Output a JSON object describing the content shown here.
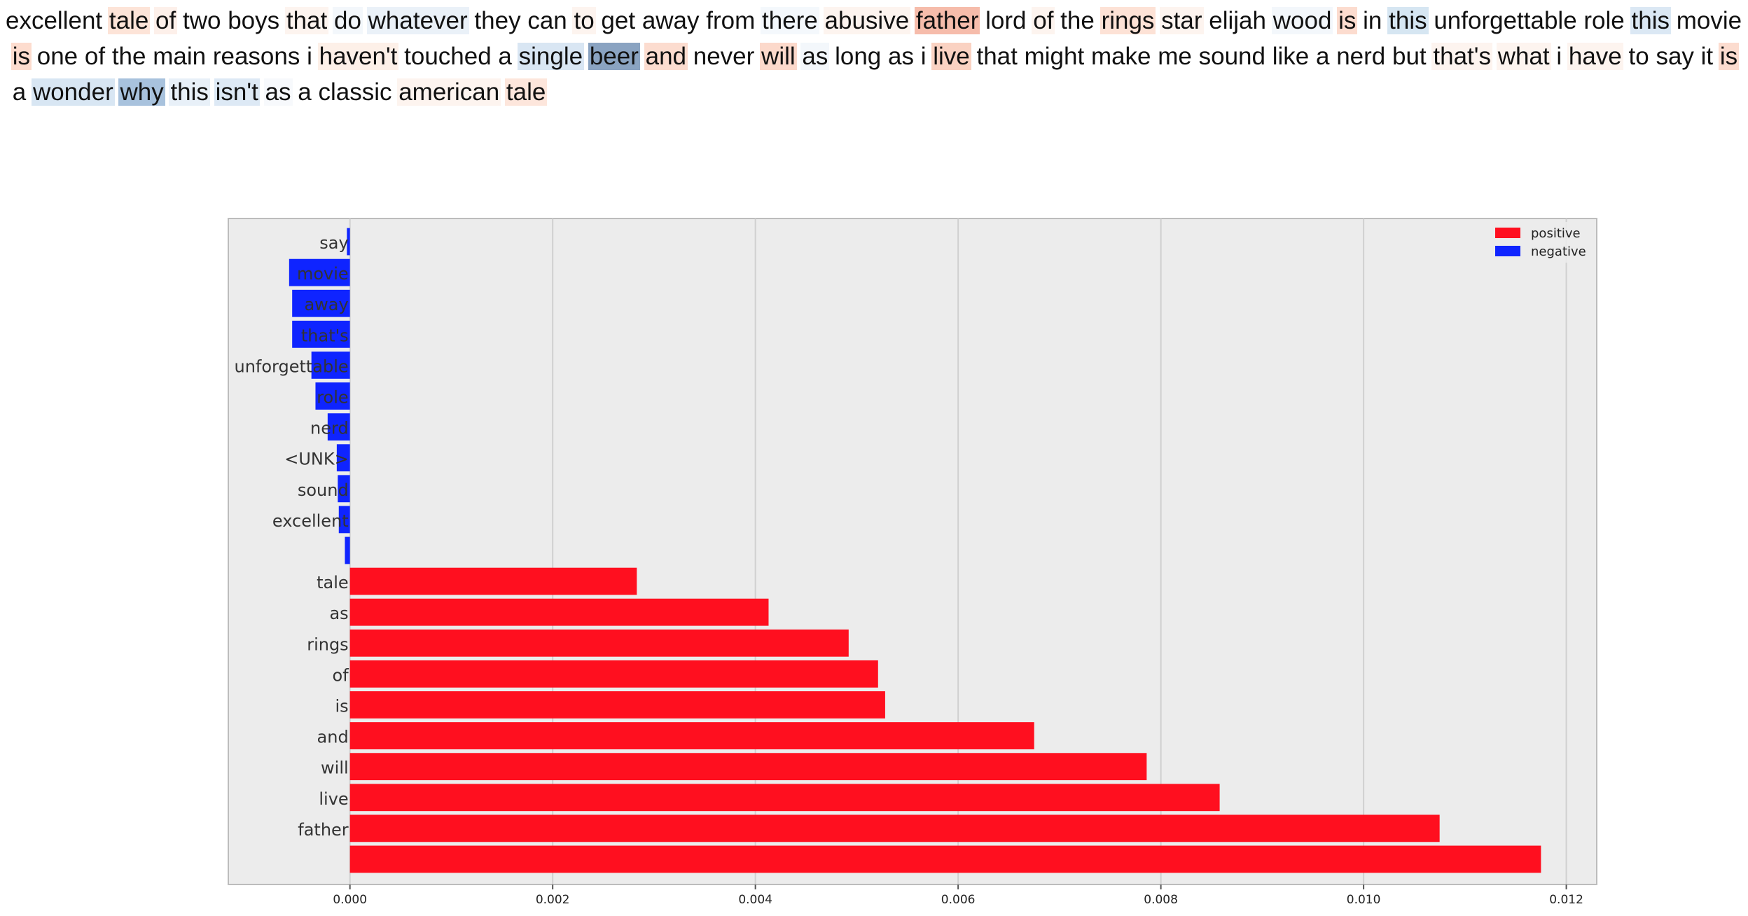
{
  "review": {
    "tokens": [
      {
        "w": "excellent",
        "c": ""
      },
      {
        "w": "tale",
        "c": "#fde4d8"
      },
      {
        "w": "of",
        "c": "#fdf0ea"
      },
      {
        "w": "two",
        "c": ""
      },
      {
        "w": "boys",
        "c": ""
      },
      {
        "w": "that",
        "c": "#fdf4ef"
      },
      {
        "w": "do",
        "c": "#f3f7fb"
      },
      {
        "w": "whatever",
        "c": "#eaf1f8"
      },
      {
        "w": "they",
        "c": ""
      },
      {
        "w": "can",
        "c": ""
      },
      {
        "w": "to",
        "c": "#fdf4ef"
      },
      {
        "w": "get",
        "c": ""
      },
      {
        "w": "away",
        "c": ""
      },
      {
        "w": "from",
        "c": ""
      },
      {
        "w": "there",
        "c": "#f4f8fc"
      },
      {
        "w": "abusive",
        "c": "#fdf4ef"
      },
      {
        "w": "father",
        "c": "#f6bcab"
      },
      {
        "w": "lord",
        "c": ""
      },
      {
        "w": "of",
        "c": "#fdf4ef"
      },
      {
        "w": "the",
        "c": ""
      },
      {
        "w": "rings",
        "c": "#fde2d6"
      },
      {
        "w": "star",
        "c": "#fdf4ef"
      },
      {
        "w": "elijah",
        "c": ""
      },
      {
        "w": "wood",
        "c": "#f3f7fb"
      },
      {
        "w": "is",
        "c": "#fcdccf"
      },
      {
        "w": "in",
        "c": ""
      },
      {
        "w": "this",
        "c": "#d6e6f2"
      },
      {
        "w": "unforgettable",
        "c": ""
      },
      {
        "w": "role",
        "c": ""
      },
      {
        "w": "this",
        "c": "#dbe8f4"
      },
      {
        "w": "movie",
        "c": ""
      },
      {
        "w": "is",
        "c": "#fddcce"
      },
      {
        "w": "one",
        "c": ""
      },
      {
        "w": "of",
        "c": ""
      },
      {
        "w": "the",
        "c": ""
      },
      {
        "w": "main",
        "c": ""
      },
      {
        "w": "reasons",
        "c": ""
      },
      {
        "w": "i",
        "c": ""
      },
      {
        "w": "haven't",
        "c": "#fdf0e8"
      },
      {
        "w": "touched",
        "c": ""
      },
      {
        "w": "a",
        "c": ""
      },
      {
        "w": "single",
        "c": "#d9e6f3"
      },
      {
        "w": "beer",
        "c": "#8aa3c1"
      },
      {
        "w": "and",
        "c": "#fcdccf"
      },
      {
        "w": "never",
        "c": ""
      },
      {
        "w": "will",
        "c": "#fcd9cb"
      },
      {
        "w": "as",
        "c": "#f3f7fb"
      },
      {
        "w": "long",
        "c": ""
      },
      {
        "w": "as",
        "c": ""
      },
      {
        "w": "i",
        "c": ""
      },
      {
        "w": "live",
        "c": "#fad2c2"
      },
      {
        "w": "that",
        "c": ""
      },
      {
        "w": "might",
        "c": ""
      },
      {
        "w": "make",
        "c": ""
      },
      {
        "w": "me",
        "c": ""
      },
      {
        "w": "sound",
        "c": ""
      },
      {
        "w": "like",
        "c": ""
      },
      {
        "w": "a",
        "c": ""
      },
      {
        "w": "nerd",
        "c": ""
      },
      {
        "w": "but",
        "c": ""
      },
      {
        "w": "that's",
        "c": "#fdf4ef"
      },
      {
        "w": "what",
        "c": "#fdf4ef"
      },
      {
        "w": "i",
        "c": ""
      },
      {
        "w": "have",
        "c": "#fdf4ef"
      },
      {
        "w": "to",
        "c": ""
      },
      {
        "w": "say",
        "c": ""
      },
      {
        "w": "it",
        "c": ""
      },
      {
        "w": "is",
        "c": "#fcdccf"
      },
      {
        "w": "a",
        "c": ""
      },
      {
        "w": "wonder",
        "c": "#d8e6f3"
      },
      {
        "w": "why",
        "c": "#a8c2dd"
      },
      {
        "w": "this",
        "c": "#e8f0f8"
      },
      {
        "w": "isn't",
        "c": "#dde9f5"
      },
      {
        "w": "as",
        "c": "#f7f9fc"
      },
      {
        "w": "a",
        "c": ""
      },
      {
        "w": "classic",
        "c": ""
      },
      {
        "w": "american",
        "c": "#fdf4ef"
      },
      {
        "w": "tale",
        "c": "#fde6dc"
      }
    ]
  },
  "chart_data": {
    "type": "bar",
    "orientation": "horizontal",
    "categories": [
      "say",
      "movie",
      "away",
      "that's",
      "unforgettable",
      "role",
      "nerd",
      "<UNK>",
      "sound",
      "excellent",
      "",
      "tale",
      "as",
      "rings",
      "of",
      "is",
      "and",
      "will",
      "live",
      "father",
      ""
    ],
    "values": [
      -3e-05,
      -0.0006,
      -0.00057,
      -0.00057,
      -0.00038,
      -0.00034,
      -0.00022,
      -0.00013,
      -0.00012,
      -0.00011,
      -5e-05,
      0.00283,
      0.00413,
      0.00492,
      0.00521,
      0.00528,
      0.00675,
      0.00786,
      0.00858,
      0.01075,
      0.01175
    ],
    "series": [
      {
        "name": "positive",
        "color": "#ff0f1f"
      },
      {
        "name": "negative",
        "color": "#0f24ff"
      }
    ],
    "xlim": [
      -0.0012,
      0.0123
    ],
    "xticks": [
      0,
      0.002,
      0.004,
      0.006,
      0.008,
      0.01,
      0.012
    ],
    "xtick_labels": [
      "0.000",
      "0.002",
      "0.004",
      "0.006",
      "0.008",
      "0.010",
      "0.012"
    ],
    "grid": true,
    "legend": "top-right",
    "title": "",
    "xlabel": "",
    "ylabel": ""
  }
}
